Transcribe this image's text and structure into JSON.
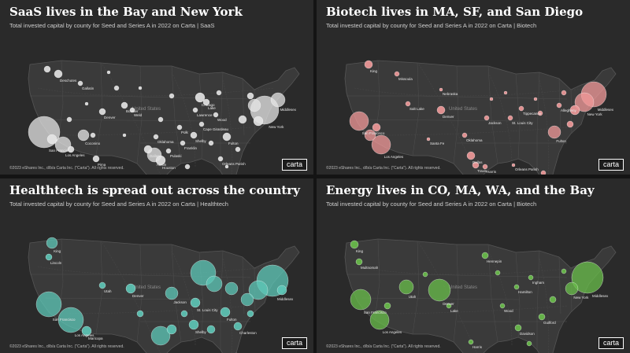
{
  "panels": [
    {
      "title": "SaaS lives in the Bay and New York",
      "subtitle": "Total invested capital by county for Seed and Series A in 2022 on Carta | SaaS",
      "copyright": "©2023 eShares Inc., d/b/a Carta Inc. (\"Carta\"). All rights reserved.",
      "logo": "carta",
      "color": "#e6e6e6",
      "labels": [
        "San Francisco",
        "Los Angeles",
        "Coconino",
        "Boise",
        "Deschutes",
        "Gallatin",
        "Denver",
        "Austin",
        "Houston",
        "Chicago",
        "Lake",
        "Orleans Parish",
        "Fulton",
        "New York",
        "Middlesex",
        "Miami-Dade",
        "Dallas",
        "Shelby",
        "Polk",
        "Weld",
        "Oklahoma",
        "Boulder",
        "Cape Girardeau",
        "Franklin",
        "Pulaski",
        "Pima",
        "Lawrence",
        "Wood"
      ]
    },
    {
      "title": "Biotech lives in MA, SF, and San Diego",
      "subtitle": "Total invested capital by county for Seed and Series A in 2022 on Carta | Biotech",
      "copyright": "©2023 eShares Inc., d/b/a Carta Inc. (\"Carta\"). All rights reserved.",
      "logo": "carta",
      "color": "#f29a9a",
      "labels": [
        "San Francisco",
        "Los Angeles",
        "King",
        "Missoula",
        "Salt Lake",
        "Denver",
        "Santa Fe",
        "Jackson",
        "St. Louis City",
        "Tippecanoe",
        "Allegheny",
        "New York",
        "Middlesex",
        "Fulton",
        "Dallas",
        "Travis",
        "Harris",
        "Orleans Parish",
        "Hillsborough",
        "Miami-Dade",
        "Oklahoma",
        "Nebraska"
      ]
    },
    {
      "title": "Healthtech is spread out across the country",
      "subtitle": "Total invested capital by county for Seed and Series A in 2022 on Carta | Healthtech",
      "copyright": "©2023 eShares Inc., d/b/a Carta Inc. (\"Carta\"). All rights reserved.",
      "logo": "carta",
      "color": "#5ec8b8",
      "labels": [
        "King",
        "Lincoln",
        "Utah",
        "Denver",
        "San Francisco",
        "Los Angeles",
        "Maricopa",
        "Jackson",
        "St. Louis City",
        "Shelby",
        "Middlesex",
        "Fulton",
        "Charleston",
        "Miami-Dade"
      ]
    },
    {
      "title": "Energy lives in CO, MA, WA, and the Bay",
      "subtitle": "Total invested capital by county for Seed and Series A in 2022 on Carta | Biotech",
      "copyright": "©2023 eShares Inc., d/b/a Carta Inc. (\"Carta\"). All rights reserved.",
      "logo": "carta",
      "color": "#6abf4b",
      "labels": [
        "King",
        "Multnomah",
        "Hennepin",
        "Utah",
        "Denver",
        "San Francisco",
        "Los Angeles",
        "Hamilton",
        "Ingham",
        "Middlesex",
        "New York",
        "Guilford",
        "Davidson",
        "Sarasota",
        "Harris",
        "Lake",
        "Wood"
      ]
    }
  ]
}
